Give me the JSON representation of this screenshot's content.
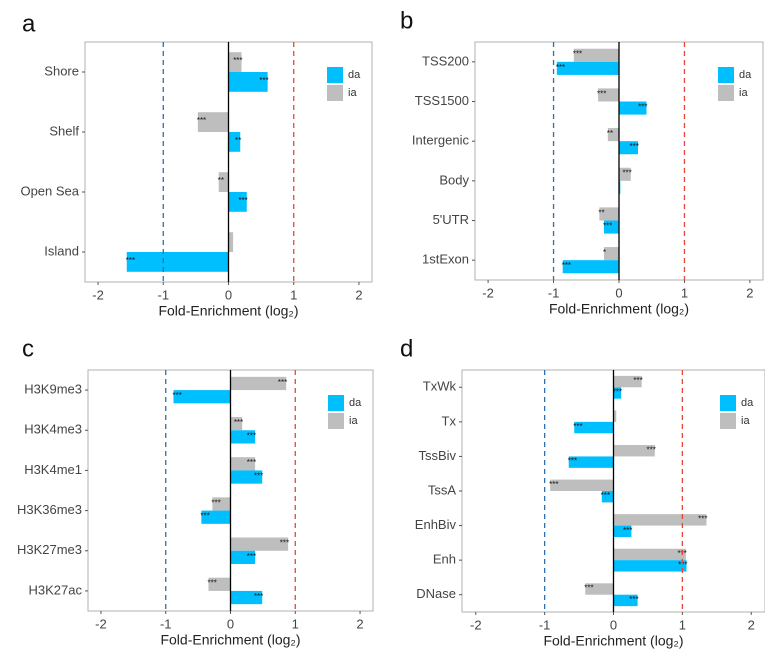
{
  "chart_data": [
    {
      "type": "bar",
      "orientation": "horizontal",
      "label": "a",
      "categories": [
        "Shore",
        "Shelf",
        "Open Sea",
        "Island"
      ],
      "series": [
        {
          "name": "da",
          "color": "#00bfff",
          "values": [
            0.6,
            0.18,
            0.28,
            -1.56
          ],
          "significance": [
            "***",
            "**",
            "***",
            "***"
          ]
        },
        {
          "name": "ia",
          "color": "#bebebe",
          "values": [
            0.2,
            -0.47,
            -0.15,
            0.07
          ],
          "significance": [
            "***",
            "***",
            "**",
            null
          ]
        }
      ],
      "xlabel": "Fold-Enrichment (log₂)",
      "xlim": [
        -2.2,
        2.2
      ],
      "xticks": [
        -2,
        -1,
        0,
        1,
        2
      ],
      "reference_lines": [
        {
          "value": -1,
          "color": "#2a6fb0",
          "style": "dashed"
        },
        {
          "value": 0,
          "color": "#000000",
          "style": "solid"
        },
        {
          "value": 1,
          "color": "#e8463c",
          "style": "dashed"
        }
      ],
      "legend": "top-right"
    },
    {
      "type": "bar",
      "orientation": "horizontal",
      "label": "b",
      "categories": [
        "TSS200",
        "TSS1500",
        "Intergenic",
        "Body",
        "5'UTR",
        "1stExon"
      ],
      "series": [
        {
          "name": "da",
          "color": "#00bfff",
          "values": [
            -0.95,
            0.42,
            0.29,
            0.02,
            -0.23,
            -0.86
          ],
          "significance": [
            "***",
            "***",
            "***",
            null,
            "***",
            "***"
          ]
        },
        {
          "name": "ia",
          "color": "#bebebe",
          "values": [
            -0.69,
            -0.32,
            -0.17,
            0.18,
            -0.3,
            -0.23
          ],
          "significance": [
            "***",
            "***",
            "**",
            "***",
            "**",
            "*"
          ]
        }
      ],
      "xlabel": "Fold-Enrichment (log₂)",
      "xlim": [
        -2.2,
        2.2
      ],
      "xticks": [
        -2,
        -1,
        0,
        1,
        2
      ],
      "reference_lines": [
        {
          "value": -1,
          "color": "#2a6fb0",
          "style": "dashed"
        },
        {
          "value": 0,
          "color": "#000000",
          "style": "solid"
        },
        {
          "value": 1,
          "color": "#e8463c",
          "style": "dashed"
        }
      ],
      "legend": "top-right"
    },
    {
      "type": "bar",
      "orientation": "horizontal",
      "label": "c",
      "categories": [
        "H3K9me3",
        "H3K4me3",
        "H3K4me1",
        "H3K36me3",
        "H3K27me3",
        "H3K27ac"
      ],
      "series": [
        {
          "name": "da",
          "color": "#00bfff",
          "values": [
            -0.88,
            0.38,
            0.49,
            -0.45,
            0.38,
            0.49
          ],
          "significance": [
            "***",
            "***",
            "***",
            "***",
            "***",
            "***"
          ]
        },
        {
          "name": "ia",
          "color": "#bebebe",
          "values": [
            0.86,
            0.18,
            0.38,
            -0.28,
            0.89,
            -0.34
          ],
          "significance": [
            "***",
            "***",
            "***",
            "***",
            "***",
            "***"
          ]
        }
      ],
      "xlabel": "Fold-Enrichment (log₂)",
      "xlim": [
        -2.2,
        2.2
      ],
      "xticks": [
        -2,
        -1,
        0,
        1,
        2
      ],
      "reference_lines": [
        {
          "value": -1,
          "color": "#2a6fb0",
          "style": "dashed"
        },
        {
          "value": 0,
          "color": "#000000",
          "style": "solid"
        },
        {
          "value": 1,
          "color": "#e8463c",
          "style": "dashed"
        }
      ],
      "legend": "top-right"
    },
    {
      "type": "bar",
      "orientation": "horizontal",
      "label": "d",
      "categories": [
        "TxWk",
        "Tx",
        "TssBiv",
        "TssA",
        "EnhBiv",
        "Enh",
        "DNase"
      ],
      "series": [
        {
          "name": "da",
          "color": "#00bfff",
          "values": [
            0.11,
            -0.57,
            -0.65,
            -0.17,
            0.26,
            1.06,
            0.35
          ],
          "significance": [
            "***",
            "***",
            "***",
            "***",
            "***",
            "***",
            "***"
          ]
        },
        {
          "name": "ia",
          "color": "#bebebe",
          "values": [
            0.41,
            0.04,
            0.6,
            -0.92,
            1.35,
            1.05,
            -0.41
          ],
          "significance": [
            "***",
            null,
            "***",
            "***",
            "***",
            "***",
            "***"
          ]
        }
      ],
      "xlabel": "Fold-Enrichment (log₂)",
      "xlim": [
        -2.2,
        2.2
      ],
      "xticks": [
        -2,
        -1,
        0,
        1,
        2
      ],
      "reference_lines": [
        {
          "value": -1,
          "color": "#2a6fb0",
          "style": "dashed"
        },
        {
          "value": 0,
          "color": "#000000",
          "style": "solid"
        },
        {
          "value": 1,
          "color": "#e8463c",
          "style": "dashed"
        }
      ],
      "legend": "top-right"
    }
  ]
}
